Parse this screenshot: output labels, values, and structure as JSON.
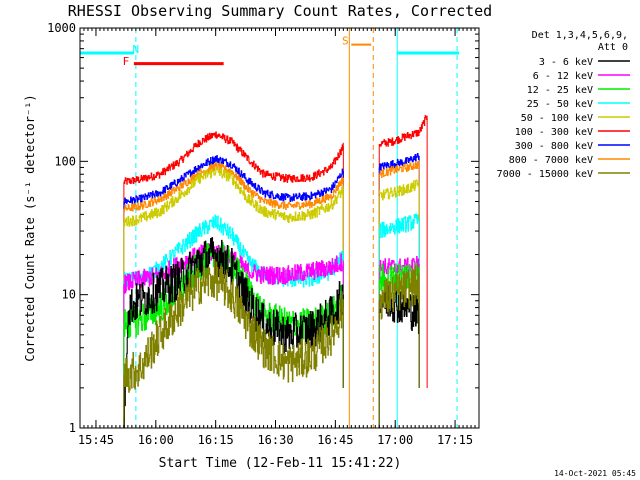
{
  "chart_data": {
    "type": "line",
    "title": "RHESSI Observing Summary Count Rates, Corrected",
    "xlabel": "Start Time (12-Feb-11 15:41:22)",
    "ylabel": "Corrected Count Rate (s⁻¹ detector⁻¹)",
    "y_scale": "log",
    "ylim": [
      1,
      1000
    ],
    "xlim_minutes_from_15_41": [
      0,
      100
    ],
    "x_ticks": [
      {
        "label": "15:45",
        "t": 4
      },
      {
        "label": "16:00",
        "t": 19
      },
      {
        "label": "16:15",
        "t": 34
      },
      {
        "label": "16:30",
        "t": 49
      },
      {
        "label": "16:45",
        "t": 64
      },
      {
        "label": "17:00",
        "t": 79
      },
      {
        "label": "17:15",
        "t": 94
      }
    ],
    "y_ticks": [
      {
        "label": "1",
        "v": 1
      },
      {
        "label": "10",
        "v": 10
      },
      {
        "label": "100",
        "v": 100
      },
      {
        "label": "1000",
        "v": 1000
      }
    ],
    "legend": {
      "position": "right",
      "header": [
        "Det 1,3,4,5,6,9,",
        "Att 0"
      ],
      "entries": [
        {
          "label": "3 - 6 keV",
          "color": "#000000"
        },
        {
          "label": "6 - 12 keV",
          "color": "#ff00ff"
        },
        {
          "label": "12 - 25 keV",
          "color": "#00ee00"
        },
        {
          "label": "25 - 50 keV",
          "color": "#00ffff"
        },
        {
          "label": "50 - 100 keV",
          "color": "#cccc00"
        },
        {
          "label": "100 - 300 keV",
          "color": "#ff0000"
        },
        {
          "label": "300 - 800 keV",
          "color": "#0000ff"
        },
        {
          "label": "800 - 7000 keV",
          "color": "#ff8800"
        },
        {
          "label": "7000 - 15000 keV",
          "color": "#808000"
        }
      ]
    },
    "series": [
      {
        "name": "100 - 300 keV",
        "color": "#ff0000",
        "noise": 0.03,
        "segments": [
          [
            [
              11,
              70
            ],
            [
              15,
              73
            ],
            [
              20,
              80
            ],
            [
              25,
              100
            ],
            [
              30,
              140
            ],
            [
              34,
              160
            ],
            [
              38,
              140
            ],
            [
              42,
              105
            ],
            [
              46,
              80
            ],
            [
              52,
              74
            ],
            [
              58,
              76
            ],
            [
              63,
              90
            ],
            [
              66,
              130
            ]
          ],
          [
            [
              75,
              135
            ],
            [
              78,
              140
            ],
            [
              82,
              155
            ],
            [
              85,
              165
            ],
            [
              87,
              220
            ]
          ]
        ]
      },
      {
        "name": "300 - 800 keV",
        "color": "#0000ff",
        "noise": 0.03,
        "segments": [
          [
            [
              11,
              50
            ],
            [
              15,
              52
            ],
            [
              20,
              58
            ],
            [
              25,
              72
            ],
            [
              30,
              92
            ],
            [
              34,
              105
            ],
            [
              38,
              95
            ],
            [
              42,
              72
            ],
            [
              46,
              58
            ],
            [
              52,
              53
            ],
            [
              58,
              55
            ],
            [
              63,
              62
            ],
            [
              66,
              85
            ]
          ],
          [
            [
              75,
              90
            ],
            [
              78,
              95
            ],
            [
              82,
              100
            ],
            [
              85,
              110
            ]
          ]
        ]
      },
      {
        "name": "800 - 7000 keV",
        "color": "#ff8800",
        "noise": 0.03,
        "segments": [
          [
            [
              11,
              44
            ],
            [
              15,
              46
            ],
            [
              20,
              52
            ],
            [
              25,
              64
            ],
            [
              30,
              82
            ],
            [
              34,
              92
            ],
            [
              38,
              84
            ],
            [
              42,
              62
            ],
            [
              46,
              50
            ],
            [
              52,
              46
            ],
            [
              58,
              48
            ],
            [
              63,
              55
            ],
            [
              66,
              75
            ]
          ],
          [
            [
              75,
              80
            ],
            [
              78,
              85
            ],
            [
              82,
              90
            ],
            [
              85,
              95
            ]
          ]
        ]
      },
      {
        "name": "50 - 100 keV",
        "color": "#cccc00",
        "noise": 0.04,
        "segments": [
          [
            [
              11,
              35
            ],
            [
              15,
              37
            ],
            [
              20,
              42
            ],
            [
              25,
              55
            ],
            [
              30,
              75
            ],
            [
              34,
              85
            ],
            [
              38,
              75
            ],
            [
              42,
              52
            ],
            [
              46,
              42
            ],
            [
              52,
              38
            ],
            [
              58,
              40
            ],
            [
              63,
              47
            ],
            [
              66,
              62
            ]
          ],
          [
            [
              75,
              55
            ],
            [
              78,
              58
            ],
            [
              82,
              62
            ],
            [
              85,
              68
            ]
          ]
        ]
      },
      {
        "name": "25 - 50 keV",
        "color": "#00ffff",
        "noise": 0.06,
        "segments": [
          [
            [
              11,
              13
            ],
            [
              15,
              13
            ],
            [
              20,
              16
            ],
            [
              25,
              22
            ],
            [
              30,
              30
            ],
            [
              34,
              35
            ],
            [
              38,
              28
            ],
            [
              42,
              18
            ],
            [
              46,
              14
            ],
            [
              52,
              13
            ],
            [
              58,
              13
            ],
            [
              63,
              15
            ],
            [
              66,
              20
            ]
          ],
          [
            [
              75,
              30
            ],
            [
              78,
              32
            ],
            [
              82,
              34
            ],
            [
              85,
              36
            ]
          ]
        ]
      },
      {
        "name": "6 - 12 keV",
        "color": "#ff00ff",
        "noise": 0.07,
        "segments": [
          [
            [
              11,
              12
            ],
            [
              15,
              13
            ],
            [
              20,
              14
            ],
            [
              25,
              17
            ],
            [
              30,
              20
            ],
            [
              34,
              21
            ],
            [
              38,
              19
            ],
            [
              42,
              15
            ],
            [
              46,
              14
            ],
            [
              52,
              14
            ],
            [
              58,
              15
            ],
            [
              63,
              16
            ],
            [
              66,
              18
            ]
          ],
          [
            [
              75,
              16
            ],
            [
              78,
              16
            ],
            [
              82,
              16
            ],
            [
              85,
              17
            ]
          ]
        ]
      },
      {
        "name": "12 - 25 keV",
        "color": "#00ee00",
        "noise": 0.12,
        "segments": [
          [
            [
              11,
              6
            ],
            [
              15,
              6.5
            ],
            [
              20,
              8
            ],
            [
              25,
              11
            ],
            [
              30,
              17
            ],
            [
              34,
              20
            ],
            [
              38,
              17
            ],
            [
              42,
              11
            ],
            [
              46,
              7
            ],
            [
              52,
              6
            ],
            [
              58,
              6
            ],
            [
              63,
              7
            ],
            [
              66,
              10
            ]
          ],
          [
            [
              75,
              13
            ],
            [
              78,
              13
            ],
            [
              82,
              14
            ],
            [
              85,
              14
            ]
          ]
        ]
      },
      {
        "name": "3 - 6 keV",
        "color": "#000000",
        "noise": 0.15,
        "segments": [
          [
            [
              11,
              1.2
            ],
            [
              12,
              8
            ],
            [
              15,
              9
            ],
            [
              20,
              11
            ],
            [
              25,
              13
            ],
            [
              30,
              18
            ],
            [
              34,
              20
            ],
            [
              38,
              16
            ],
            [
              42,
              9
            ],
            [
              46,
              6
            ],
            [
              52,
              5
            ],
            [
              58,
              5.5
            ],
            [
              63,
              7
            ],
            [
              66,
              10
            ]
          ],
          [
            [
              75,
              9
            ],
            [
              78,
              9
            ],
            [
              82,
              8
            ],
            [
              85,
              7
            ]
          ]
        ]
      },
      {
        "name": "7000 - 15000 keV",
        "color": "#808000",
        "noise": 0.15,
        "segments": [
          [
            [
              11,
              2.5
            ],
            [
              15,
              2.8
            ],
            [
              20,
              5
            ],
            [
              25,
              8
            ],
            [
              30,
              12
            ],
            [
              34,
              13
            ],
            [
              38,
              10
            ],
            [
              42,
              6
            ],
            [
              46,
              4
            ],
            [
              52,
              3
            ],
            [
              58,
              3.5
            ],
            [
              63,
              5
            ],
            [
              66,
              8
            ]
          ],
          [
            [
              75,
              9
            ],
            [
              78,
              10
            ],
            [
              82,
              11
            ],
            [
              85,
              12
            ]
          ]
        ]
      }
    ],
    "annotations": [
      {
        "type": "text",
        "label": "N",
        "color": "#00ffff",
        "t": 14,
        "v": 650
      },
      {
        "type": "text",
        "label": "F",
        "color": "#ff0000",
        "t": 11.5,
        "v": 530
      },
      {
        "type": "text",
        "label": "S",
        "color": "#ff8800",
        "t": 66.5,
        "v": 750
      }
    ],
    "intervals": [
      {
        "name": "night-bar-left",
        "color": "#00ffff",
        "t0": 0,
        "t1": 13.5,
        "v": 650,
        "width": 3
      },
      {
        "name": "night-bar-right",
        "color": "#00ffff",
        "t0": 79.5,
        "t1": 95,
        "v": 650,
        "width": 3
      },
      {
        "name": "flare-bar",
        "color": "#ff0000",
        "t0": 13.5,
        "t1": 36,
        "v": 540,
        "width": 3
      },
      {
        "name": "saa-bar",
        "color": "#ff8800",
        "t0": 68,
        "t1": 73,
        "v": 750,
        "width": 2
      }
    ],
    "vlines": [
      {
        "name": "night-start-left",
        "t": 0,
        "color": "#00ffff",
        "dashed": false
      },
      {
        "name": "night-end-left",
        "t": 14,
        "color": "#00ffff",
        "dashed": true
      },
      {
        "name": "saa-start",
        "t": 67.5,
        "color": "#ff8800",
        "dashed": false
      },
      {
        "name": "saa-end",
        "t": 73.5,
        "color": "#ff8800",
        "dashed": true
      },
      {
        "name": "night-start-right",
        "t": 79.5,
        "color": "#00ffff",
        "dashed": false
      },
      {
        "name": "night-end-right",
        "t": 94.5,
        "color": "#00ffff",
        "dashed": true
      }
    ],
    "footer": "14-Oct-2021 05:45"
  }
}
